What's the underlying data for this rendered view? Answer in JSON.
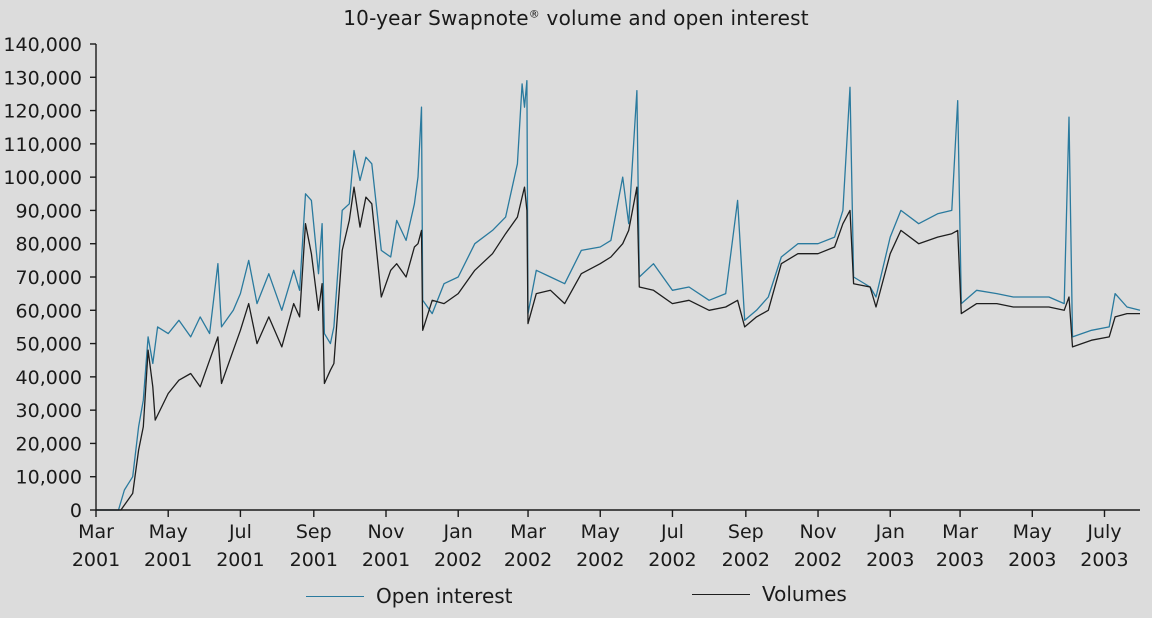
{
  "title": {
    "main": "10-year Swapnote",
    "mark": "®",
    "rest": " volume and open interest"
  },
  "colors": {
    "open_interest": "#2a7a9e",
    "volumes": "#1e1e1e",
    "axis": "#1a1a1a",
    "background": "#dcdcdc"
  },
  "legend": {
    "open_interest": "Open interest",
    "volumes": "Volumes"
  },
  "chart_data": {
    "type": "line",
    "x_type": "date",
    "ylim": [
      0,
      140000
    ],
    "xlim": [
      "2001-03-01",
      "2003-07-31"
    ],
    "y_ticks": [
      {
        "value": 0,
        "label": "0"
      },
      {
        "value": 10000,
        "label": "10,000"
      },
      {
        "value": 20000,
        "label": "20,000"
      },
      {
        "value": 30000,
        "label": "30,000"
      },
      {
        "value": 40000,
        "label": "40,000"
      },
      {
        "value": 50000,
        "label": "50,000"
      },
      {
        "value": 60000,
        "label": "60,000"
      },
      {
        "value": 70000,
        "label": "70,000"
      },
      {
        "value": 80000,
        "label": "80,000"
      },
      {
        "value": 90000,
        "label": "90,000"
      },
      {
        "value": 100000,
        "label": "100,000"
      },
      {
        "value": 110000,
        "label": "110,000"
      },
      {
        "value": 120000,
        "label": "120,000"
      },
      {
        "value": 130000,
        "label": "130,000"
      },
      {
        "value": 140000,
        "label": "140,000"
      }
    ],
    "x_ticks": [
      {
        "date": "2001-03-01",
        "month": "Mar",
        "year": "2001"
      },
      {
        "date": "2001-05-01",
        "month": "May",
        "year": "2001"
      },
      {
        "date": "2001-07-01",
        "month": "Jul",
        "year": "2001"
      },
      {
        "date": "2001-09-01",
        "month": "Sep",
        "year": "2001"
      },
      {
        "date": "2001-11-01",
        "month": "Nov",
        "year": "2001"
      },
      {
        "date": "2002-01-01",
        "month": "Jan",
        "year": "2002"
      },
      {
        "date": "2002-03-01",
        "month": "Mar",
        "year": "2002"
      },
      {
        "date": "2002-05-01",
        "month": "May",
        "year": "2002"
      },
      {
        "date": "2002-07-01",
        "month": "Jul",
        "year": "2002"
      },
      {
        "date": "2002-09-01",
        "month": "Sep",
        "year": "2002"
      },
      {
        "date": "2002-11-01",
        "month": "Nov",
        "year": "2002"
      },
      {
        "date": "2003-01-01",
        "month": "Jan",
        "year": "2003"
      },
      {
        "date": "2003-03-01",
        "month": "Mar",
        "year": "2003"
      },
      {
        "date": "2003-05-01",
        "month": "May",
        "year": "2003"
      },
      {
        "date": "2003-07-01",
        "month": "July",
        "year": "2003"
      }
    ],
    "series": [
      {
        "name": "Open interest",
        "color": "#2a7a9e",
        "points": [
          [
            "2001-03-01",
            0
          ],
          [
            "2001-03-20",
            0
          ],
          [
            "2001-03-25",
            6000
          ],
          [
            "2001-04-01",
            10000
          ],
          [
            "2001-04-06",
            25000
          ],
          [
            "2001-04-10",
            33000
          ],
          [
            "2001-04-14",
            52000
          ],
          [
            "2001-04-18",
            44000
          ],
          [
            "2001-04-22",
            55000
          ],
          [
            "2001-05-01",
            53000
          ],
          [
            "2001-05-10",
            57000
          ],
          [
            "2001-05-20",
            52000
          ],
          [
            "2001-05-28",
            58000
          ],
          [
            "2001-06-05",
            53000
          ],
          [
            "2001-06-12",
            74000
          ],
          [
            "2001-06-15",
            55000
          ],
          [
            "2001-06-25",
            60000
          ],
          [
            "2001-07-01",
            65000
          ],
          [
            "2001-07-08",
            75000
          ],
          [
            "2001-07-15",
            62000
          ],
          [
            "2001-07-25",
            71000
          ],
          [
            "2001-08-05",
            60000
          ],
          [
            "2001-08-15",
            72000
          ],
          [
            "2001-08-20",
            66000
          ],
          [
            "2001-08-25",
            95000
          ],
          [
            "2001-08-30",
            93000
          ],
          [
            "2001-09-05",
            71000
          ],
          [
            "2001-09-08",
            86000
          ],
          [
            "2001-09-10",
            53000
          ],
          [
            "2001-09-15",
            50000
          ],
          [
            "2001-09-18",
            55000
          ],
          [
            "2001-09-25",
            90000
          ],
          [
            "2001-10-01",
            92000
          ],
          [
            "2001-10-05",
            108000
          ],
          [
            "2001-10-10",
            99000
          ],
          [
            "2001-10-15",
            106000
          ],
          [
            "2001-10-20",
            104000
          ],
          [
            "2001-10-28",
            78000
          ],
          [
            "2001-11-05",
            76000
          ],
          [
            "2001-11-10",
            87000
          ],
          [
            "2001-11-18",
            81000
          ],
          [
            "2001-11-25",
            92000
          ],
          [
            "2001-11-28",
            100000
          ],
          [
            "2001-12-01",
            121000
          ],
          [
            "2001-12-02",
            63000
          ],
          [
            "2001-12-10",
            59000
          ],
          [
            "2001-12-20",
            68000
          ],
          [
            "2002-01-01",
            70000
          ],
          [
            "2002-01-15",
            80000
          ],
          [
            "2002-01-30",
            84000
          ],
          [
            "2002-02-10",
            88000
          ],
          [
            "2002-02-20",
            104000
          ],
          [
            "2002-02-24",
            128000
          ],
          [
            "2002-02-26",
            121000
          ],
          [
            "2002-02-28",
            129000
          ],
          [
            "2002-03-01",
            59000
          ],
          [
            "2002-03-08",
            72000
          ],
          [
            "2002-03-20",
            70000
          ],
          [
            "2002-04-01",
            68000
          ],
          [
            "2002-04-15",
            78000
          ],
          [
            "2002-05-01",
            79000
          ],
          [
            "2002-05-10",
            81000
          ],
          [
            "2002-05-20",
            100000
          ],
          [
            "2002-05-25",
            86000
          ],
          [
            "2002-06-01",
            126000
          ],
          [
            "2002-06-03",
            70000
          ],
          [
            "2002-06-15",
            74000
          ],
          [
            "2002-07-01",
            66000
          ],
          [
            "2002-07-15",
            67000
          ],
          [
            "2002-08-01",
            63000
          ],
          [
            "2002-08-15",
            65000
          ],
          [
            "2002-08-25",
            93000
          ],
          [
            "2002-08-31",
            57000
          ],
          [
            "2002-09-10",
            60000
          ],
          [
            "2002-09-20",
            64000
          ],
          [
            "2002-10-01",
            76000
          ],
          [
            "2002-10-15",
            80000
          ],
          [
            "2002-11-01",
            80000
          ],
          [
            "2002-11-15",
            82000
          ],
          [
            "2002-11-22",
            90000
          ],
          [
            "2002-11-28",
            127000
          ],
          [
            "2002-12-01",
            70000
          ],
          [
            "2002-12-15",
            67000
          ],
          [
            "2002-12-20",
            64000
          ],
          [
            "2003-01-01",
            82000
          ],
          [
            "2003-01-10",
            90000
          ],
          [
            "2003-01-25",
            86000
          ],
          [
            "2003-02-10",
            89000
          ],
          [
            "2003-02-22",
            90000
          ],
          [
            "2003-02-27",
            123000
          ],
          [
            "2003-03-02",
            62000
          ],
          [
            "2003-03-15",
            66000
          ],
          [
            "2003-04-01",
            65000
          ],
          [
            "2003-04-15",
            64000
          ],
          [
            "2003-05-01",
            64000
          ],
          [
            "2003-05-15",
            64000
          ],
          [
            "2003-05-28",
            62000
          ],
          [
            "2003-06-01",
            118000
          ],
          [
            "2003-06-04",
            52000
          ],
          [
            "2003-06-20",
            54000
          ],
          [
            "2003-07-05",
            55000
          ],
          [
            "2003-07-10",
            65000
          ],
          [
            "2003-07-20",
            61000
          ],
          [
            "2003-07-31",
            60000
          ]
        ]
      },
      {
        "name": "Volumes",
        "color": "#1e1e1e",
        "points": [
          [
            "2001-03-01",
            0
          ],
          [
            "2001-03-22",
            0
          ],
          [
            "2001-03-28",
            3000
          ],
          [
            "2001-04-01",
            5000
          ],
          [
            "2001-04-06",
            18000
          ],
          [
            "2001-04-10",
            25000
          ],
          [
            "2001-04-14",
            48000
          ],
          [
            "2001-04-18",
            37000
          ],
          [
            "2001-04-20",
            27000
          ],
          [
            "2001-05-01",
            35000
          ],
          [
            "2001-05-10",
            39000
          ],
          [
            "2001-05-20",
            41000
          ],
          [
            "2001-05-28",
            37000
          ],
          [
            "2001-06-05",
            45000
          ],
          [
            "2001-06-12",
            52000
          ],
          [
            "2001-06-15",
            38000
          ],
          [
            "2001-06-25",
            48000
          ],
          [
            "2001-07-01",
            54000
          ],
          [
            "2001-07-08",
            62000
          ],
          [
            "2001-07-15",
            50000
          ],
          [
            "2001-07-25",
            58000
          ],
          [
            "2001-08-05",
            49000
          ],
          [
            "2001-08-15",
            62000
          ],
          [
            "2001-08-20",
            58000
          ],
          [
            "2001-08-25",
            86000
          ],
          [
            "2001-08-30",
            77000
          ],
          [
            "2001-09-05",
            60000
          ],
          [
            "2001-09-08",
            68000
          ],
          [
            "2001-09-10",
            38000
          ],
          [
            "2001-09-15",
            42000
          ],
          [
            "2001-09-18",
            44000
          ],
          [
            "2001-09-25",
            78000
          ],
          [
            "2001-10-01",
            87000
          ],
          [
            "2001-10-05",
            97000
          ],
          [
            "2001-10-10",
            85000
          ],
          [
            "2001-10-15",
            94000
          ],
          [
            "2001-10-20",
            92000
          ],
          [
            "2001-10-28",
            64000
          ],
          [
            "2001-11-05",
            72000
          ],
          [
            "2001-11-10",
            74000
          ],
          [
            "2001-11-18",
            70000
          ],
          [
            "2001-11-25",
            79000
          ],
          [
            "2001-11-28",
            80000
          ],
          [
            "2001-12-01",
            84000
          ],
          [
            "2001-12-02",
            54000
          ],
          [
            "2001-12-10",
            63000
          ],
          [
            "2001-12-20",
            62000
          ],
          [
            "2002-01-01",
            65000
          ],
          [
            "2002-01-15",
            72000
          ],
          [
            "2002-01-30",
            77000
          ],
          [
            "2002-02-10",
            83000
          ],
          [
            "2002-02-20",
            88000
          ],
          [
            "2002-02-24",
            94000
          ],
          [
            "2002-02-26",
            97000
          ],
          [
            "2002-02-28",
            90000
          ],
          [
            "2002-03-01",
            56000
          ],
          [
            "2002-03-08",
            65000
          ],
          [
            "2002-03-20",
            66000
          ],
          [
            "2002-04-01",
            62000
          ],
          [
            "2002-04-15",
            71000
          ],
          [
            "2002-05-01",
            74000
          ],
          [
            "2002-05-10",
            76000
          ],
          [
            "2002-05-20",
            80000
          ],
          [
            "2002-05-25",
            84000
          ],
          [
            "2002-06-01",
            97000
          ],
          [
            "2002-06-03",
            67000
          ],
          [
            "2002-06-15",
            66000
          ],
          [
            "2002-07-01",
            62000
          ],
          [
            "2002-07-15",
            63000
          ],
          [
            "2002-08-01",
            60000
          ],
          [
            "2002-08-15",
            61000
          ],
          [
            "2002-08-25",
            63000
          ],
          [
            "2002-08-31",
            55000
          ],
          [
            "2002-09-10",
            58000
          ],
          [
            "2002-09-20",
            60000
          ],
          [
            "2002-10-01",
            74000
          ],
          [
            "2002-10-15",
            77000
          ],
          [
            "2002-11-01",
            77000
          ],
          [
            "2002-11-15",
            79000
          ],
          [
            "2002-11-22",
            86000
          ],
          [
            "2002-11-28",
            90000
          ],
          [
            "2002-12-01",
            68000
          ],
          [
            "2002-12-15",
            67000
          ],
          [
            "2002-12-20",
            61000
          ],
          [
            "2003-01-01",
            77000
          ],
          [
            "2003-01-10",
            84000
          ],
          [
            "2003-01-25",
            80000
          ],
          [
            "2003-02-10",
            82000
          ],
          [
            "2003-02-22",
            83000
          ],
          [
            "2003-02-27",
            84000
          ],
          [
            "2003-03-02",
            59000
          ],
          [
            "2003-03-15",
            62000
          ],
          [
            "2003-04-01",
            62000
          ],
          [
            "2003-04-15",
            61000
          ],
          [
            "2003-05-01",
            61000
          ],
          [
            "2003-05-15",
            61000
          ],
          [
            "2003-05-28",
            60000
          ],
          [
            "2003-06-01",
            64000
          ],
          [
            "2003-06-04",
            49000
          ],
          [
            "2003-06-20",
            51000
          ],
          [
            "2003-07-05",
            52000
          ],
          [
            "2003-07-10",
            58000
          ],
          [
            "2003-07-20",
            59000
          ],
          [
            "2003-07-31",
            59000
          ]
        ]
      }
    ]
  }
}
